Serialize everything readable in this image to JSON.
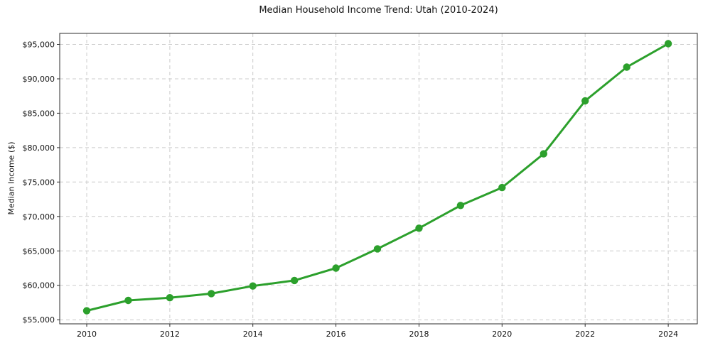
{
  "chart_data": {
    "type": "line",
    "title": "Median Household Income Trend: Utah (2010-2024)",
    "xlabel": "",
    "ylabel": "Median Income ($)",
    "x": [
      2010,
      2011,
      2012,
      2013,
      2014,
      2015,
      2016,
      2017,
      2018,
      2019,
      2020,
      2021,
      2022,
      2023,
      2024
    ],
    "series": [
      {
        "name": "Median household income",
        "values": [
          56300,
          57800,
          58200,
          58800,
          59900,
          60700,
          62500,
          65300,
          68300,
          71600,
          74200,
          79100,
          86800,
          91700,
          95100
        ]
      }
    ],
    "x_ticks": [
      2010,
      2012,
      2014,
      2016,
      2018,
      2020,
      2022,
      2024
    ],
    "y_ticks": [
      55000,
      60000,
      65000,
      70000,
      75000,
      80000,
      85000,
      90000,
      95000
    ],
    "y_tick_labels": [
      "$55,000",
      "$60,000",
      "$65,000",
      "$70,000",
      "$75,000",
      "$80,000",
      "$85,000",
      "$90,000",
      "$95,000"
    ],
    "xlim": [
      2009.35,
      2024.7
    ],
    "ylim": [
      54400,
      96600
    ],
    "grid": true,
    "grid_style": "dashed",
    "legend": "none",
    "marker": "circle",
    "line_color": "#2ca02c",
    "grid_color": "#cccccc",
    "spine_color": "#2e2e2e",
    "text_color": "#111111",
    "background_color": "#ffffff"
  }
}
